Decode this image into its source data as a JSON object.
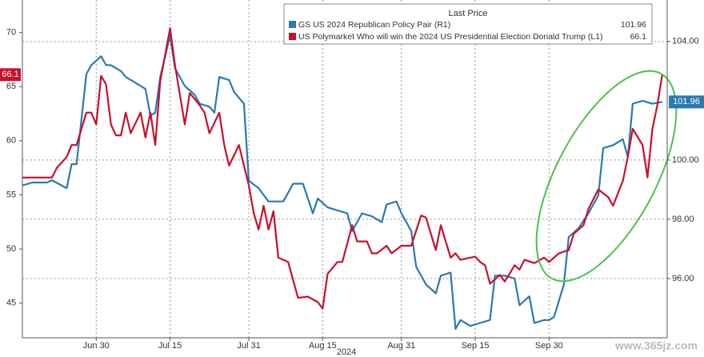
{
  "chart_data": {
    "type": "line",
    "legend_title": "Last Price",
    "x_label": "2024",
    "watermark": "www.365jz.com",
    "xlim": [
      "2024-06-15",
      "2024-10-24"
    ],
    "xticks": [
      {
        "value": "2024-06-30",
        "label": "Jun 30"
      },
      {
        "value": "2024-07-15",
        "label": "Jul 15"
      },
      {
        "value": "2024-07-31",
        "label": "Jul 31"
      },
      {
        "value": "2024-08-15",
        "label": "Aug 15"
      },
      {
        "value": "2024-08-31",
        "label": "Aug 31"
      },
      {
        "value": "2024-09-15",
        "label": "Sep 15"
      },
      {
        "value": "2024-09-30",
        "label": "Sep 30"
      }
    ],
    "ylim": [
      41.8,
      73
    ],
    "yticks": [
      45,
      50,
      55,
      60,
      65,
      70
    ],
    "y2lim": [
      94,
      105.4
    ],
    "y2ticks": [
      {
        "value": 96,
        "label": "96.00"
      },
      {
        "value": 98,
        "label": "98.00"
      },
      {
        "value": 100,
        "label": "100.00"
      },
      {
        "value": 104,
        "label": "104.00"
      }
    ],
    "grid": true,
    "series": [
      {
        "name": "GS US 2024 Republican Policy Pair  (R1)",
        "color": "#2a7ab0",
        "axis": "y2",
        "x": [
          "2024-06-15",
          "2024-06-17",
          "2024-06-20",
          "2024-06-21",
          "2024-06-24",
          "2024-06-25",
          "2024-06-26",
          "2024-06-28",
          "2024-06-29",
          "2024-07-01",
          "2024-07-02",
          "2024-07-03",
          "2024-07-05",
          "2024-07-06",
          "2024-07-08",
          "2024-07-10",
          "2024-07-11",
          "2024-07-12",
          "2024-07-13",
          "2024-07-15",
          "2024-07-16",
          "2024-07-18",
          "2024-07-20",
          "2024-07-21",
          "2024-07-23",
          "2024-07-24",
          "2024-07-25",
          "2024-07-27",
          "2024-07-28",
          "2024-07-30",
          "2024-07-31",
          "2024-08-02",
          "2024-08-04",
          "2024-08-06",
          "2024-08-07",
          "2024-08-09",
          "2024-08-11",
          "2024-08-13",
          "2024-08-14",
          "2024-08-16",
          "2024-08-18",
          "2024-08-20",
          "2024-08-21",
          "2024-08-23",
          "2024-08-25",
          "2024-08-27",
          "2024-08-28",
          "2024-08-30",
          "2024-08-31",
          "2024-09-02",
          "2024-09-03",
          "2024-09-05",
          "2024-09-07",
          "2024-09-08",
          "2024-09-10",
          "2024-09-11",
          "2024-09-12",
          "2024-09-14",
          "2024-09-16",
          "2024-09-18",
          "2024-09-19",
          "2024-09-21",
          "2024-09-23",
          "2024-09-24",
          "2024-09-26",
          "2024-09-27",
          "2024-09-29",
          "2024-09-30",
          "2024-10-01",
          "2024-10-03",
          "2024-10-04",
          "2024-10-06",
          "2024-10-08",
          "2024-10-10",
          "2024-10-11",
          "2024-10-13",
          "2024-10-15",
          "2024-10-16",
          "2024-10-17",
          "2024-10-19",
          "2024-10-21",
          "2024-10-23"
        ],
        "values": [
          99.14,
          99.24,
          99.24,
          99.32,
          99.05,
          99.86,
          99.86,
          102.9,
          103.2,
          103.5,
          103.2,
          103.2,
          103.0,
          102.8,
          102.6,
          102.4,
          101.5,
          101.6,
          102.8,
          104.2,
          103.1,
          102.5,
          102.2,
          101.9,
          101.8,
          101.6,
          102.8,
          102.7,
          102.3,
          101.9,
          99.3,
          99.05,
          98.6,
          98.6,
          98.6,
          99.2,
          99.2,
          98.2,
          98.7,
          98.4,
          98.3,
          98.2,
          97.6,
          98.2,
          98.1,
          97.9,
          98.5,
          98.6,
          98.2,
          97.6,
          96.4,
          95.8,
          95.5,
          96.1,
          96.2,
          94.3,
          94.6,
          94.4,
          94.5,
          94.6,
          96.1,
          96.1,
          96.0,
          95.1,
          95.4,
          94.5,
          94.6,
          94.6,
          94.7,
          95.8,
          97.4,
          97.7,
          98.2,
          98.8,
          100.4,
          100.5,
          100.7,
          100.1,
          101.9,
          102.0,
          101.9,
          101.96
        ]
      },
      {
        "name": "US Polymarket Who will win the 2024 US Presidential Election Donald Trump  (L1)",
        "color": "#c8102e",
        "x": [
          "2024-06-15",
          "2024-06-21",
          "2024-06-22",
          "2024-06-24",
          "2024-06-25",
          "2024-06-26",
          "2024-06-28",
          "2024-06-29",
          "2024-06-30",
          "2024-07-01",
          "2024-07-02",
          "2024-07-03",
          "2024-07-04",
          "2024-07-05",
          "2024-07-06",
          "2024-07-07",
          "2024-07-09",
          "2024-07-10",
          "2024-07-11",
          "2024-07-12",
          "2024-07-13",
          "2024-07-15",
          "2024-07-16",
          "2024-07-18",
          "2024-07-19",
          "2024-07-21",
          "2024-07-22",
          "2024-07-23",
          "2024-07-25",
          "2024-07-26",
          "2024-07-27",
          "2024-07-29",
          "2024-07-31",
          "2024-08-01",
          "2024-08-02",
          "2024-08-03",
          "2024-08-04",
          "2024-08-05",
          "2024-08-06",
          "2024-08-08",
          "2024-08-10",
          "2024-08-12",
          "2024-08-14",
          "2024-08-15",
          "2024-08-16",
          "2024-08-18",
          "2024-08-19",
          "2024-08-21",
          "2024-08-22",
          "2024-08-24",
          "2024-08-25",
          "2024-08-26",
          "2024-08-28",
          "2024-08-29",
          "2024-08-31",
          "2024-09-02",
          "2024-09-04",
          "2024-09-05",
          "2024-09-07",
          "2024-09-08",
          "2024-09-10",
          "2024-09-11",
          "2024-09-12",
          "2024-09-15",
          "2024-09-16",
          "2024-09-17",
          "2024-09-18",
          "2024-09-20",
          "2024-09-21",
          "2024-09-23",
          "2024-09-24",
          "2024-09-25",
          "2024-09-27",
          "2024-09-29",
          "2024-09-30",
          "2024-10-02",
          "2024-10-04",
          "2024-10-05",
          "2024-10-07",
          "2024-10-08",
          "2024-10-10",
          "2024-10-12",
          "2024-10-13",
          "2024-10-15",
          "2024-10-16",
          "2024-10-17",
          "2024-10-19",
          "2024-10-20",
          "2024-10-21",
          "2024-10-22",
          "2024-10-23"
        ],
        "values": [
          56.6,
          56.6,
          57.5,
          58.5,
          59.6,
          59.6,
          62.6,
          62.6,
          61.5,
          66.0,
          65.2,
          61.5,
          60.5,
          60.5,
          62.6,
          60.7,
          62.6,
          60.3,
          62.6,
          59.6,
          65.5,
          70.4,
          67.0,
          61.5,
          64.4,
          63.3,
          62.6,
          60.7,
          62.6,
          59.6,
          57.7,
          59.6,
          55.9,
          53.3,
          51.8,
          54.0,
          51.8,
          53.5,
          49.2,
          48.8,
          45.5,
          45.6,
          45.1,
          44.5,
          47.7,
          48.8,
          48.8,
          52.2,
          50.7,
          50.7,
          49.6,
          49.6,
          50.3,
          49.6,
          50.3,
          50.3,
          53.1,
          52.9,
          49.9,
          52.2,
          49.2,
          49.6,
          49.0,
          49.3,
          48.8,
          48.5,
          46.8,
          47.6,
          47.0,
          48.5,
          48.1,
          49.0,
          48.7,
          49.2,
          48.8,
          49.6,
          49.9,
          51.4,
          52.2,
          53.7,
          55.5,
          54.8,
          54.0,
          56.3,
          58.5,
          61.1,
          59.6,
          56.6,
          61.1,
          63.3,
          66.1
        ]
      }
    ]
  }
}
